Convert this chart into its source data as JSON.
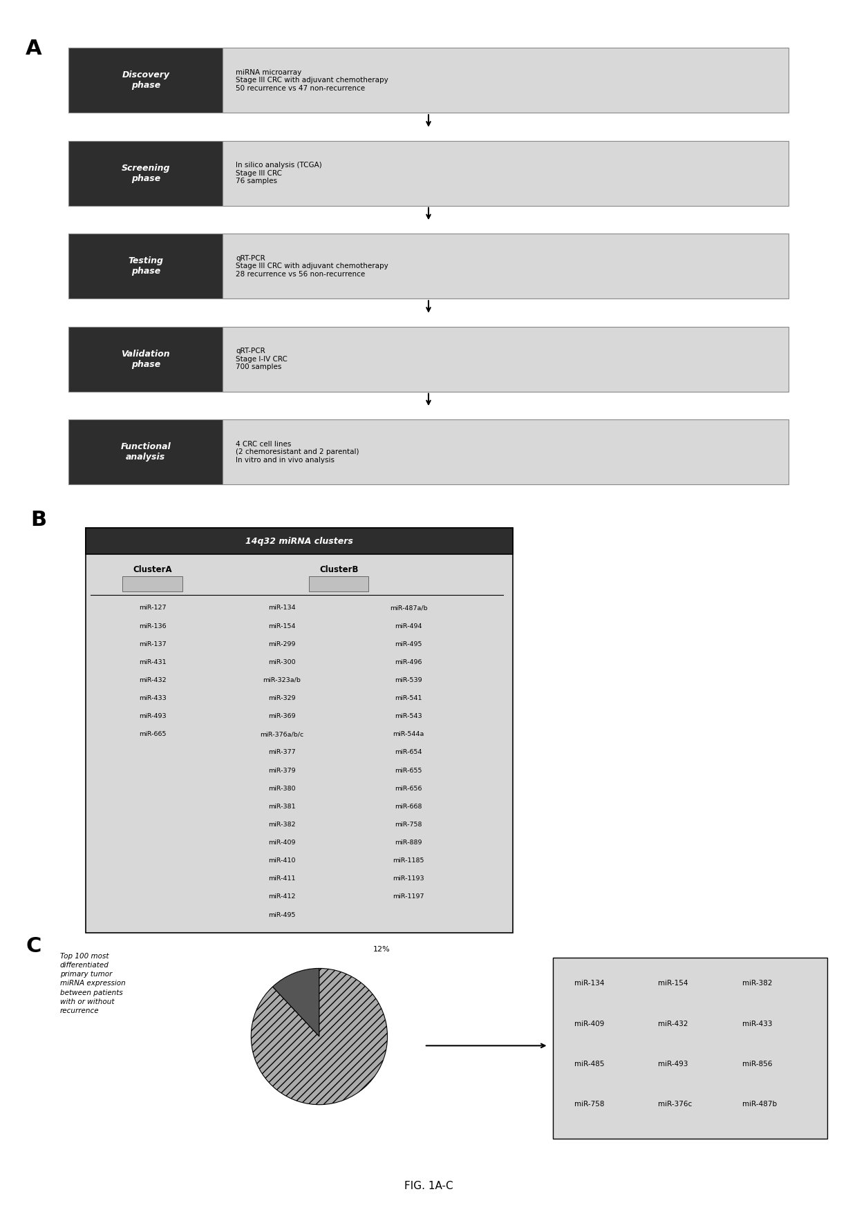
{
  "panel_A_phases": [
    {
      "label": "Discovery\nphase",
      "text": "miRNA microarray\nStage III CRC with adjuvant chemotherapy\n50 recurrence vs 47 non-recurrence"
    },
    {
      "label": "Screening\nphase",
      "text": "In silico analysis (TCGA)\nStage III CRC\n76 samples"
    },
    {
      "label": "Testing\nphase",
      "text": "qRT-PCR\nStage III CRC with adjuvant chemotherapy\n28 recurrence vs 56 non-recurrence"
    },
    {
      "label": "Validation\nphase",
      "text": "qRT-PCR\nStage I-IV CRC\n700 samples"
    },
    {
      "label": "Functional\nanalysis",
      "text": "4 CRC cell lines\n(2 chemoresistant and 2 parental)\nIn vitro and in vivo analysis"
    }
  ],
  "panel_B_title": "14q32 miRNA clusters",
  "panel_B_clusterA_label": "ClusterA",
  "panel_B_clusterB_label": "ClusterB",
  "panel_B_clusterA": [
    "miR-127",
    "miR-136",
    "miR-137",
    "miR-431",
    "miR-432",
    "miR-433",
    "miR-493",
    "miR-665"
  ],
  "panel_B_clusterB_col1": [
    "miR-134",
    "miR-154",
    "miR-299",
    "miR-300",
    "miR-323a/b",
    "miR-329",
    "miR-369",
    "miR-376a/b/c",
    "miR-377",
    "miR-379",
    "miR-380",
    "miR-381",
    "miR-382",
    "miR-409",
    "miR-410",
    "miR-411",
    "miR-412",
    "miR-495"
  ],
  "panel_B_clusterB_col2": [
    "miR-487a/b",
    "miR-494",
    "miR-495",
    "miR-496",
    "miR-539",
    "miR-541",
    "miR-543",
    "miR-544a",
    "miR-654",
    "miR-655",
    "miR-656",
    "miR-668",
    "miR-758",
    "miR-889",
    "miR-1185",
    "miR-1193",
    "miR-1197",
    ""
  ],
  "panel_C_text": "Top 100 most\ndifferentiated\nprimary tumor\nmiRNA expression\nbetween patients\nwith or without\nrecurrence",
  "panel_C_percent": "12%",
  "panel_C_mirnas": [
    [
      "miR-134",
      "miR-154",
      "miR-382"
    ],
    [
      "miR-409",
      "miR-432",
      "miR-433"
    ],
    [
      "miR-485",
      "miR-493",
      "miR-856"
    ],
    [
      "miR-758",
      "miR-376c",
      "miR-487b"
    ]
  ],
  "label_A": "A",
  "label_B": "B",
  "label_C": "C",
  "fig_label": "FIG. 1A-C",
  "dark_bg": "#2d2d2d",
  "light_bg": "#d8d8d8",
  "box_border": "#888888",
  "white": "#ffffff"
}
